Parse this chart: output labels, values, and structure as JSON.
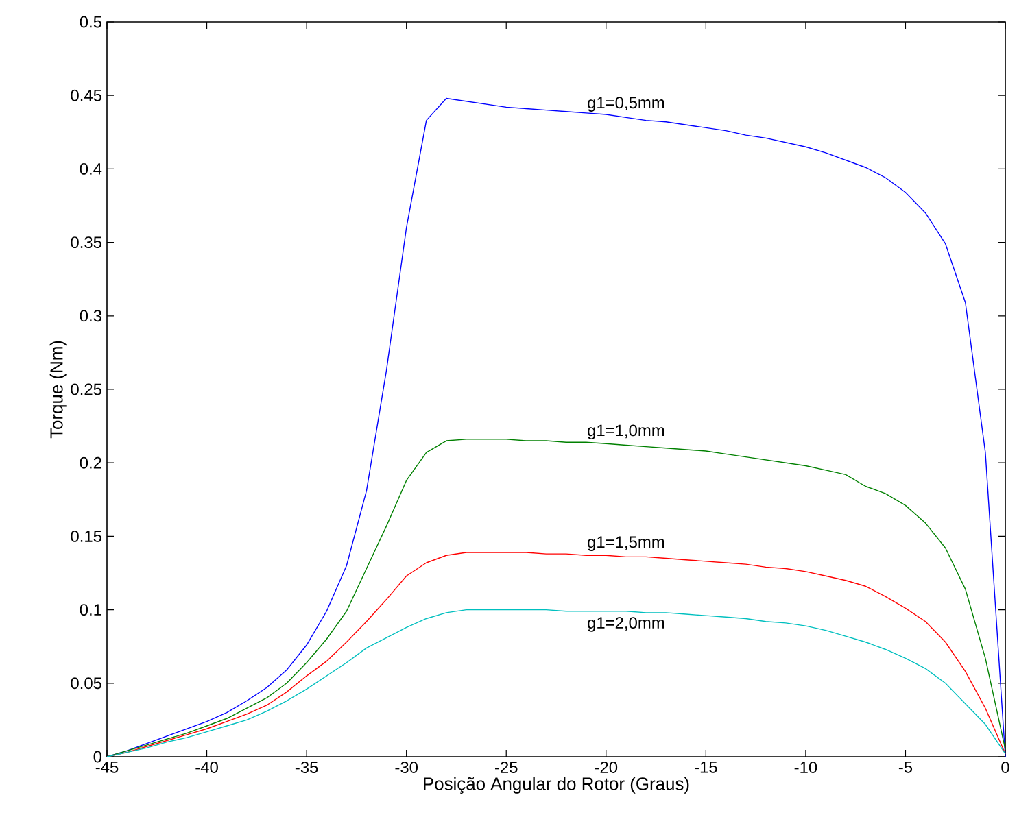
{
  "chart_data": {
    "type": "line",
    "xlabel": "Posição Angular do Rotor (Graus)",
    "ylabel": "Torque (Nm)",
    "x": [
      -45,
      -44,
      -43,
      -42,
      -41,
      -40,
      -39,
      -38,
      -37,
      -36,
      -35,
      -34,
      -33,
      -32,
      -31,
      -30,
      -29,
      -28,
      -27,
      -26,
      -25,
      -24,
      -23,
      -22,
      -21,
      -20,
      -19,
      -18,
      -17,
      -16,
      -15,
      -14,
      -13,
      -12,
      -11,
      -10,
      -9,
      -8,
      -7,
      -6,
      -5,
      -4,
      -3,
      -2,
      -1,
      0
    ],
    "series": [
      {
        "name": "g1=0,5mm",
        "color": "#0000ff",
        "values": [
          0,
          0.004,
          0.009,
          0.014,
          0.019,
          0.024,
          0.03,
          0.038,
          0.047,
          0.059,
          0.076,
          0.099,
          0.13,
          0.181,
          0.263,
          0.36,
          0.433,
          0.448,
          0.446,
          0.444,
          0.442,
          0.441,
          0.44,
          0.439,
          0.438,
          0.437,
          0.435,
          0.433,
          0.432,
          0.43,
          0.428,
          0.426,
          0.423,
          0.421,
          0.418,
          0.415,
          0.411,
          0.406,
          0.401,
          0.394,
          0.384,
          0.37,
          0.349,
          0.309,
          0.207,
          0
        ]
      },
      {
        "name": "g1=1,0mm",
        "color": "#008000",
        "values": [
          0,
          0.004,
          0.008,
          0.012,
          0.016,
          0.021,
          0.026,
          0.033,
          0.04,
          0.05,
          0.064,
          0.08,
          0.099,
          0.128,
          0.157,
          0.188,
          0.207,
          0.215,
          0.216,
          0.216,
          0.216,
          0.215,
          0.215,
          0.214,
          0.214,
          0.213,
          0.212,
          0.211,
          0.21,
          0.209,
          0.208,
          0.206,
          0.204,
          0.202,
          0.2,
          0.198,
          0.195,
          0.192,
          0.184,
          0.179,
          0.171,
          0.159,
          0.142,
          0.114,
          0.067,
          0.005
        ]
      },
      {
        "name": "g1=1,5mm",
        "color": "#ff0000",
        "values": [
          0,
          0.003,
          0.007,
          0.011,
          0.015,
          0.019,
          0.024,
          0.029,
          0.035,
          0.044,
          0.055,
          0.065,
          0.078,
          0.092,
          0.107,
          0.123,
          0.132,
          0.137,
          0.139,
          0.139,
          0.139,
          0.139,
          0.138,
          0.138,
          0.137,
          0.137,
          0.136,
          0.136,
          0.135,
          0.134,
          0.133,
          0.132,
          0.131,
          0.129,
          0.128,
          0.126,
          0.123,
          0.12,
          0.116,
          0.109,
          0.101,
          0.092,
          0.078,
          0.058,
          0.033,
          0.002
        ]
      },
      {
        "name": "g1=2,0mm",
        "color": "#00bfbf",
        "values": [
          0,
          0.003,
          0.006,
          0.01,
          0.013,
          0.017,
          0.021,
          0.025,
          0.031,
          0.038,
          0.046,
          0.055,
          0.064,
          0.074,
          0.081,
          0.088,
          0.094,
          0.098,
          0.1,
          0.1,
          0.1,
          0.1,
          0.1,
          0.099,
          0.099,
          0.099,
          0.099,
          0.098,
          0.098,
          0.097,
          0.096,
          0.095,
          0.094,
          0.092,
          0.091,
          0.089,
          0.086,
          0.082,
          0.078,
          0.073,
          0.067,
          0.06,
          0.05,
          0.036,
          0.022,
          0.002
        ]
      }
    ],
    "xlim": [
      -45,
      0
    ],
    "ylim": [
      0,
      0.5
    ],
    "xticks": [
      -45,
      -40,
      -35,
      -30,
      -25,
      -20,
      -15,
      -10,
      -5,
      0
    ],
    "yticks": [
      0,
      0.05,
      0.1,
      0.15,
      0.2,
      0.25,
      0.3,
      0.35,
      0.4,
      0.45,
      0.5
    ]
  }
}
